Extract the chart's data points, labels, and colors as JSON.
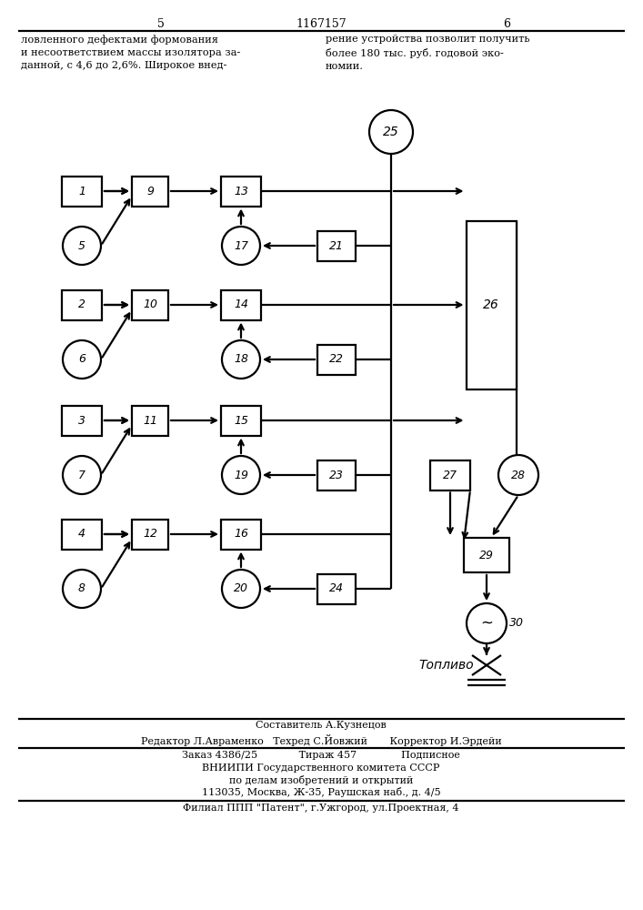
{
  "bg_color": "#ffffff",
  "lc": "#000000",
  "lw": 1.6,
  "page_left": "5",
  "page_center": "1167157",
  "page_right": "6",
  "text_left": "ловленного дефектами формования\nи несоответствием массы изолятора за-\nданной, с 4,6 до 2,6%. Широкое внед-",
  "text_right": "рение устройства позволит получить\nболее 180 тыс. руб. годовой эко-\nномии.",
  "footer1": "Составитель А.Кузнецов",
  "footer2": "Редактор Л.Авраменко   Техред С.Йовжий       Корректор И.Эрдейи",
  "footer3": "Заказ 4386/25             Тираж 457              Подписное",
  "footer4": "ВНИИПИ Государственного комитета СССР",
  "footer5": "по делам изобретений и открытий",
  "footer6": "113035, Москва, Ж-35, Раушская наб., д. 4/5",
  "footer7": "Филиал ППП \"Патент\", г.Ужгород, ул.Проектная, 4",
  "toplivo": "Топливо"
}
